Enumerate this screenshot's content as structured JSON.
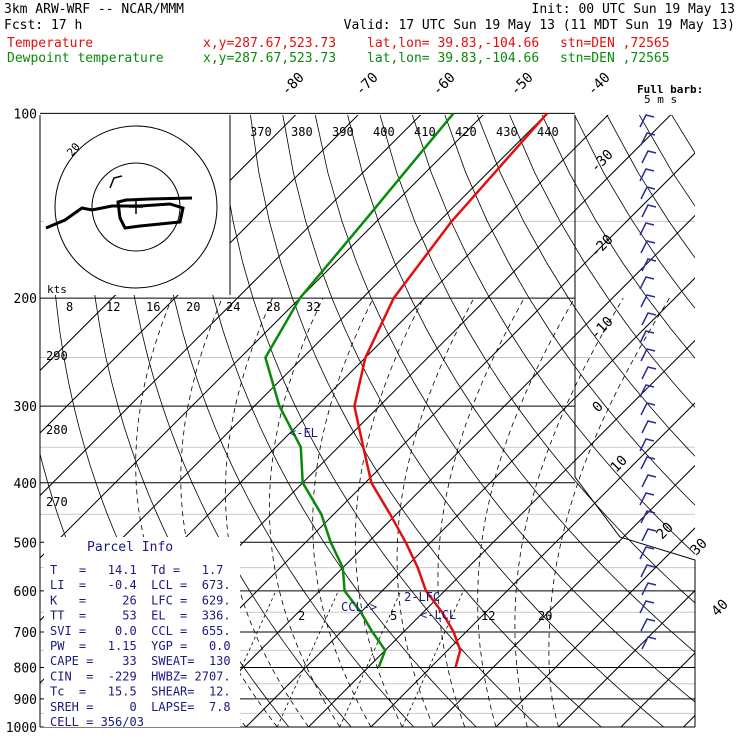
{
  "header": {
    "line1_left": "3km ARW-WRF -- NCAR/MMM",
    "line1_right": "Init: 00 UTC Sun 19 May 13",
    "line2_left": "Fcst:    17 h",
    "line2_right": "Valid: 17 UTC Sun 19 May 13 (11 MDT Sun 19 May 13)",
    "legend_temp": "Temperature",
    "legend_dew": "Dewpoint temperature",
    "xy": "x,y=287.67,523.73",
    "latlon": "lat,lon= 39.83,-104.66",
    "stn": "stn=DEN ,72565"
  },
  "colors": {
    "temperature": "#e01010",
    "dewpoint": "#0a8a0a",
    "navy": "#1a1a80",
    "grid": "#000000",
    "lightgrid": "#c8c8c8"
  },
  "chart_data": {
    "type": "line",
    "title": "",
    "pressure_levels": [
      "100",
      "200",
      "300",
      "400",
      "500",
      "600",
      "700",
      "800",
      "900",
      "1000"
    ],
    "plim": [
      1000,
      100
    ],
    "isotherm_labels": [
      "-80",
      "-70",
      "-60",
      "-50",
      "-40",
      "-30",
      "-20",
      "-10",
      "0",
      "10",
      "20",
      "30",
      "40"
    ],
    "theta_labels": [
      "370",
      "380",
      "390",
      "400",
      "410",
      "420",
      "430",
      "440"
    ],
    "mixing_ratio_labels": [
      "2",
      "5",
      "12",
      "20"
    ],
    "hodograph_speed_labels": [
      "8",
      "12",
      "16",
      "20",
      "24",
      "28",
      "32"
    ],
    "hodograph_units": "kts",
    "hodograph_ring_label": "20",
    "left_axis_labels": [
      "290",
      "280",
      "270"
    ],
    "barb_legend": [
      "Full barb:",
      "5 m s"
    ],
    "series": [
      {
        "name": "Temperature",
        "pressure": [
          100,
          150,
          200,
          250,
          300,
          350,
          400,
          450,
          500,
          550,
          600,
          650,
          700,
          750,
          800
        ],
        "temperature": [
          -60,
          -58,
          -55,
          -50,
          -44,
          -36,
          -29,
          -21,
          -14,
          -8,
          -3,
          3,
          8,
          12,
          14
        ]
      },
      {
        "name": "Dewpoint temperature",
        "pressure": [
          100,
          150,
          200,
          250,
          300,
          350,
          400,
          450,
          500,
          550,
          600,
          650,
          700,
          750,
          800
        ],
        "dewpoint": [
          -75,
          -72,
          -70,
          -66,
          -56,
          -46,
          -40,
          -32,
          -26,
          -20,
          -16,
          -10,
          -5,
          0,
          1.7
        ]
      }
    ],
    "annotations": [
      "<-EL",
      "2-LFC",
      "CCL->",
      "<-LCL"
    ]
  },
  "parcel": {
    "title": "Parcel Info",
    "rows": [
      "T   =   14.1  Td =   1.7",
      "LI  =   -0.4  LCL =  673.",
      "K   =     26  LFC =  629.",
      "TT  =     53  EL  =  336.",
      "SVI =    0.0  CCL =  655.",
      "PW  =   1.15  YGP =   0.0",
      "CAPE =    33  SWEAT=  130",
      "CIN  =  -229  HWBZ= 2707.",
      "Tc  =   15.5  SHEAR=  12.",
      "SREH =     0  LAPSE=  7.8",
      "CELL = 356/03"
    ]
  }
}
